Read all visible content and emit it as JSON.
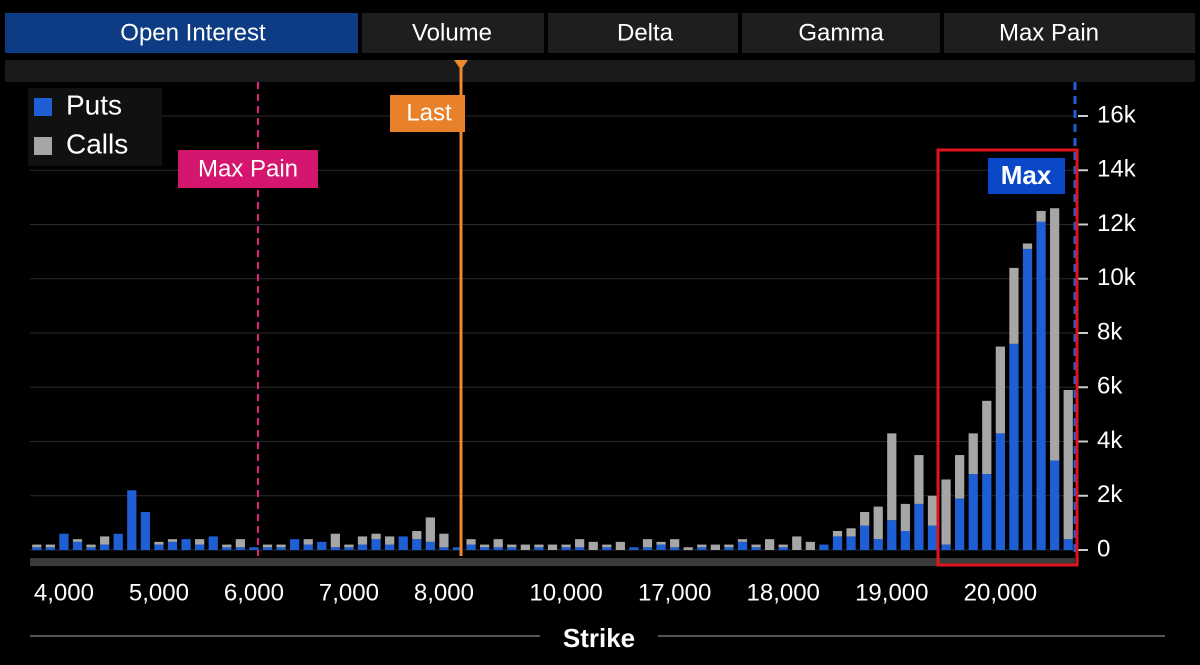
{
  "tabs": [
    "Open Interest",
    "Volume",
    "Delta",
    "Gamma",
    "Max Pain"
  ],
  "chart_data": {
    "type": "stacked_bar",
    "x_label": "Strike",
    "annotations": {
      "max_pain": "Max Pain",
      "last": "Last",
      "max": "Max"
    },
    "categories": [
      null,
      null,
      "4,000",
      null,
      null,
      null,
      null,
      null,
      null,
      "5,000",
      null,
      null,
      null,
      null,
      null,
      null,
      "6,000",
      null,
      null,
      null,
      null,
      null,
      null,
      "7,000",
      null,
      null,
      null,
      null,
      null,
      null,
      "8,000",
      null,
      null,
      null,
      null,
      null,
      null,
      null,
      null,
      "10,000",
      null,
      null,
      null,
      null,
      null,
      null,
      null,
      "17,000",
      null,
      null,
      null,
      null,
      null,
      null,
      null,
      "18,000",
      null,
      null,
      null,
      null,
      null,
      null,
      null,
      "19,000",
      null,
      null,
      null,
      null,
      null,
      null,
      null,
      "20,000",
      null,
      null,
      null,
      null,
      null
    ],
    "series": [
      {
        "name": "Puts",
        "color": "#1f5fd6",
        "values": [
          100,
          100,
          600,
          300,
          100,
          200,
          600,
          2200,
          1400,
          200,
          300,
          400,
          200,
          500,
          100,
          100,
          100,
          100,
          100,
          400,
          200,
          300,
          100,
          100,
          200,
          400,
          200,
          500,
          400,
          300,
          100,
          100,
          200,
          100,
          100,
          100,
          0,
          100,
          0,
          100,
          100,
          0,
          100,
          0,
          100,
          100,
          200,
          100,
          0,
          100,
          0,
          100,
          300,
          100,
          0,
          100,
          0,
          0,
          200,
          500,
          500,
          900,
          400,
          1100,
          700,
          1700,
          900,
          200,
          1900,
          2800,
          2800,
          4300,
          7600,
          11100,
          12100,
          3300,
          400
        ]
      },
      {
        "name": "Calls",
        "color": "#a6a6a6",
        "values": [
          100,
          100,
          0,
          100,
          100,
          300,
          0,
          0,
          0,
          100,
          100,
          0,
          200,
          0,
          100,
          300,
          0,
          100,
          100,
          0,
          200,
          0,
          500,
          100,
          300,
          200,
          300,
          0,
          300,
          900,
          500,
          0,
          200,
          100,
          300,
          100,
          200,
          100,
          200,
          100,
          300,
          300,
          100,
          300,
          0,
          300,
          100,
          300,
          100,
          100,
          200,
          100,
          100,
          100,
          400,
          100,
          500,
          300,
          0,
          200,
          300,
          500,
          1200,
          3200,
          1000,
          1800,
          1100,
          2400,
          1600,
          1500,
          2700,
          3200,
          2800,
          200,
          400,
          9300,
          5500
        ]
      }
    ],
    "ylim": [
      0,
      17000
    ],
    "yticks": [
      0,
      {
        "value": 2000,
        "label": "2k"
      },
      {
        "value": 4000,
        "label": "4k"
      },
      {
        "value": 6000,
        "label": "6k"
      },
      {
        "value": 8000,
        "label": "8k"
      },
      {
        "value": 10000,
        "label": "10k"
      },
      {
        "value": 12000,
        "label": "12k"
      },
      {
        "value": 14000,
        "label": "14k"
      },
      {
        "value": 16000,
        "label": "16k"
      }
    ],
    "grid": true
  }
}
